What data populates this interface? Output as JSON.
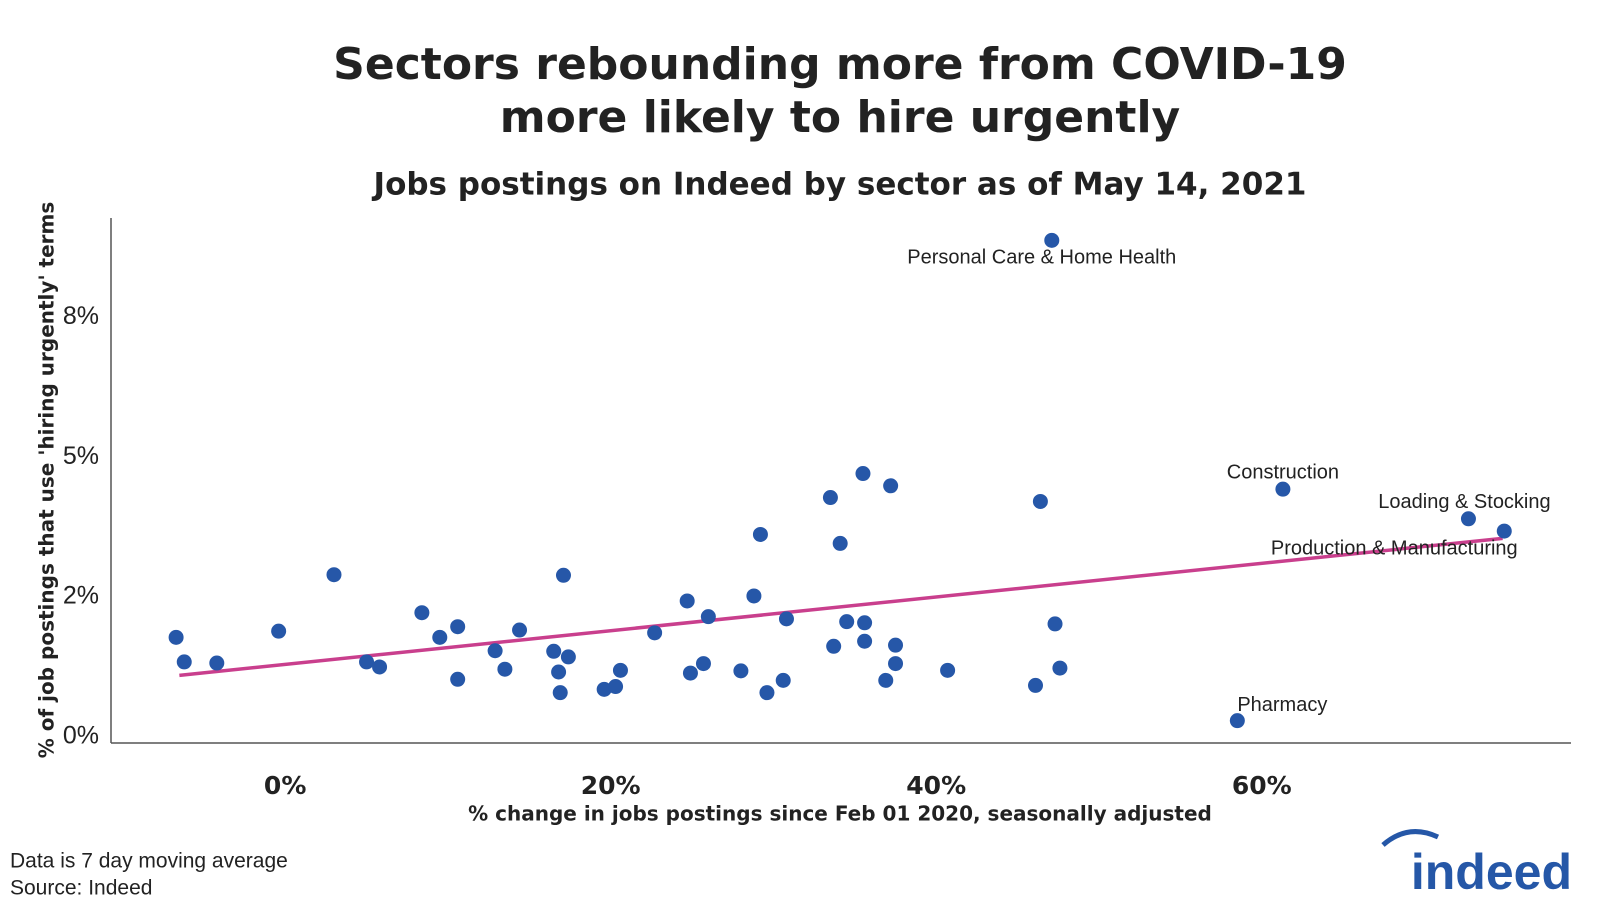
{
  "chart_data": {
    "type": "scatter",
    "title": "Sectors rebounding more from COVID-19",
    "title_line2": "more likely to hire urgently",
    "subtitle": "Jobs postings on Indeed by sector as of May 14, 2021",
    "x_label": "% change in jobs postings since Feb 01 2020, seasonally adjusted",
    "y_label": "% of job postings that use 'hiring urgently' terms",
    "color": "#2657a8",
    "x": [
      -6.7,
      -6.2,
      -4.2,
      -0.4,
      3.0,
      5.0,
      5.8,
      8.4,
      9.5,
      10.6,
      10.6,
      12.9,
      13.5,
      14.4,
      16.5,
      16.8,
      16.9,
      17.1,
      17.4,
      19.6,
      20.3,
      20.6,
      22.7,
      24.7,
      24.9,
      25.7,
      26.0,
      28.0,
      28.8,
      29.2,
      29.6,
      30.6,
      30.8,
      33.5,
      33.7,
      34.1,
      34.5,
      35.5,
      35.6,
      35.6,
      36.9,
      37.2,
      37.5,
      37.5,
      40.7,
      46.1,
      46.4,
      47.1,
      47.3,
      47.6,
      58.5,
      61.3,
      72.7,
      74.9
    ],
    "values": [
      1.78,
      1.34,
      1.32,
      1.89,
      2.9,
      1.34,
      1.25,
      2.22,
      1.78,
      1.97,
      1.03,
      1.54,
      1.21,
      1.91,
      1.53,
      1.16,
      0.79,
      2.89,
      1.43,
      0.85,
      0.9,
      1.19,
      1.86,
      2.43,
      1.14,
      1.31,
      2.15,
      1.18,
      2.52,
      3.62,
      0.79,
      1.01,
      2.11,
      4.28,
      1.62,
      3.46,
      2.06,
      4.71,
      2.04,
      1.71,
      1.01,
      4.49,
      1.64,
      1.31,
      1.19,
      0.92,
      4.21,
      8.88,
      2.02,
      1.23,
      0.29,
      4.43,
      3.9,
      3.68
    ],
    "trend": {
      "color": "#c93f8d",
      "x": [
        -6.5,
        74.8
      ],
      "values": [
        1.1,
        3.55
      ]
    },
    "annotations": [
      "Personal Care & Home Health",
      "Construction",
      "Loading & Stocking",
      "Production & Manufacturing",
      "Pharmacy"
    ],
    "xlim": [
      -10.7,
      79.0
    ],
    "ylim": [
      -0.11,
      9.28
    ],
    "xticks": [
      {
        "value": 0,
        "label": "0%"
      },
      {
        "value": 20,
        "label": "20%"
      },
      {
        "value": 40,
        "label": "40%"
      },
      {
        "value": 60,
        "label": "60%"
      }
    ],
    "yticks": [
      {
        "value": 0,
        "label": "0%"
      },
      {
        "value": 2.5,
        "label": "2%"
      },
      {
        "value": 5,
        "label": "5%"
      },
      {
        "value": 7.5,
        "label": "8%"
      }
    ],
    "footnotes": [
      "Data is 7 day moving average",
      "Source: Indeed"
    ],
    "logo": "indeed"
  }
}
